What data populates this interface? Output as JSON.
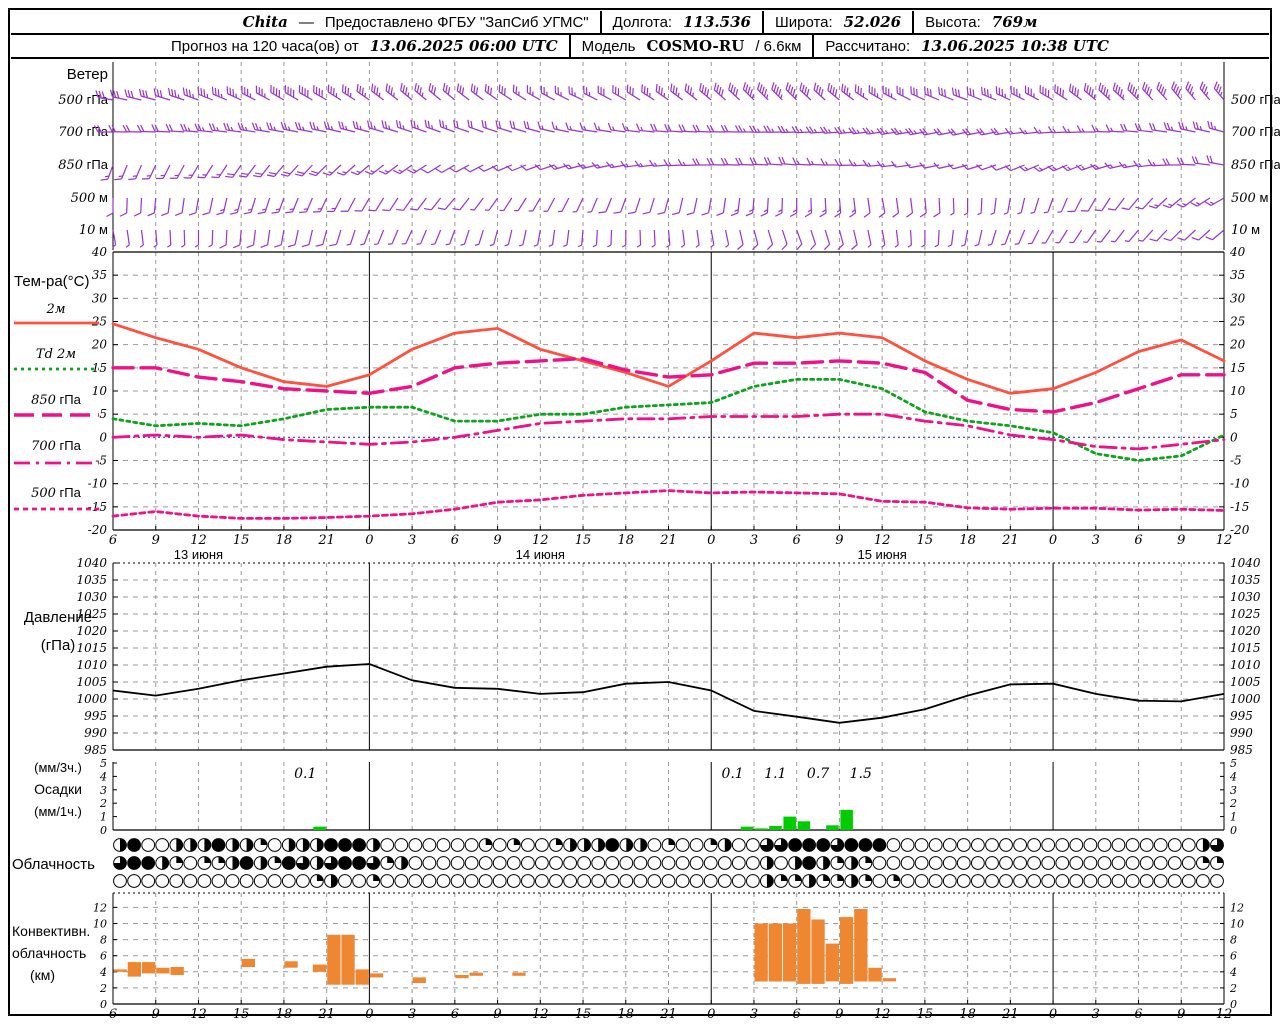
{
  "header": {
    "station": "Chita",
    "dash": "—",
    "provider": "Предоставлено ФГБУ \"ЗапСиб УГМС\"",
    "lon_label": "Долгота:",
    "lon_value": "113.536",
    "lat_label": "Широта:",
    "lat_value": "52.026",
    "alt_label": "Высота:",
    "alt_value": "769м",
    "forecast_label": "Прогноз на 120 часа(ов) от",
    "forecast_time": "13.06.2025 06:00 UTC",
    "model_label": "Модель",
    "model_name": "COSMO-RU",
    "model_res": "/ 6.6км",
    "calc_label": "Рассчитано:",
    "calc_time": "13.06.2025 10:38 UTC"
  },
  "colors": {
    "wind": "#9933cc",
    "t2m": "#ff5040",
    "td2m": "#0da31c",
    "iso": "#ee1188",
    "precip": "#00cc00",
    "convective": "#ef8632",
    "pressure": "#000000",
    "grid": "#999999",
    "zero_line": "#3333ff"
  },
  "chart_data": {
    "time_axis": {
      "start_hour": 6,
      "end_hour": 84,
      "tick_step_h": 3,
      "tick_labels": [
        "6",
        "9",
        "12",
        "15",
        "18",
        "21",
        "0",
        "3",
        "6",
        "9",
        "12",
        "15",
        "18",
        "21",
        "0",
        "3",
        "6",
        "9",
        "12",
        "15",
        "18",
        "21",
        "0",
        "3",
        "6",
        "9",
        "12"
      ],
      "date_labels": [
        {
          "label": "13 июня",
          "hour": 12
        },
        {
          "label": "14 июня",
          "hour": 36
        },
        {
          "label": "15 июня",
          "hour": 60
        }
      ],
      "midnights": [
        24,
        48,
        72
      ]
    },
    "wind": {
      "type": "wind-barbs",
      "title": "Ветер",
      "levels": [
        {
          "label_num": "500",
          "label_unit": "гПа",
          "dirs": [
            280,
            285,
            290,
            295,
            300,
            300,
            305,
            310,
            310,
            305,
            300,
            295,
            300,
            305,
            310,
            315,
            315,
            310,
            300,
            295,
            290,
            295,
            300,
            310,
            315,
            320,
            320
          ],
          "speeds": [
            16,
            16,
            18,
            18,
            20,
            20,
            18,
            18,
            16,
            16,
            14,
            14,
            16,
            18,
            20,
            22,
            22,
            20,
            18,
            16,
            16,
            18,
            20,
            22,
            22,
            20,
            18
          ]
        },
        {
          "label_num": "700",
          "label_unit": "гПа",
          "dirs": [
            270,
            272,
            275,
            278,
            280,
            282,
            285,
            288,
            290,
            288,
            285,
            280,
            278,
            275,
            272,
            270,
            268,
            265,
            262,
            260,
            258,
            260,
            265,
            270,
            275,
            280,
            285
          ],
          "speeds": [
            10,
            10,
            12,
            12,
            12,
            14,
            14,
            12,
            12,
            10,
            10,
            8,
            8,
            10,
            10,
            12,
            12,
            14,
            14,
            12,
            10,
            10,
            8,
            8,
            10,
            12,
            12
          ]
        },
        {
          "label_num": "850",
          "label_unit": "гПа",
          "dirs": [
            200,
            205,
            210,
            215,
            220,
            225,
            230,
            235,
            240,
            245,
            250,
            255,
            260,
            265,
            270,
            272,
            275,
            270,
            265,
            260,
            255,
            250,
            245,
            250,
            260,
            270,
            280
          ],
          "speeds": [
            8,
            8,
            8,
            10,
            10,
            10,
            8,
            8,
            6,
            6,
            6,
            8,
            8,
            8,
            10,
            10,
            10,
            8,
            8,
            6,
            6,
            6,
            8,
            8,
            8,
            10,
            10
          ]
        },
        {
          "label_num": "500",
          "label_unit": "м",
          "dirs": [
            180,
            185,
            190,
            195,
            200,
            205,
            210,
            215,
            220,
            215,
            210,
            205,
            200,
            195,
            190,
            185,
            180,
            175,
            170,
            175,
            180,
            190,
            200,
            210,
            220,
            230,
            240
          ],
          "speeds": [
            6,
            6,
            6,
            8,
            8,
            8,
            6,
            6,
            6,
            4,
            4,
            4,
            6,
            6,
            6,
            8,
            8,
            8,
            6,
            6,
            4,
            4,
            4,
            6,
            6,
            8,
            8
          ]
        },
        {
          "label_num": "10",
          "label_unit": "м",
          "dirs": [
            170,
            175,
            180,
            185,
            190,
            195,
            200,
            205,
            200,
            195,
            190,
            185,
            180,
            175,
            170,
            165,
            160,
            165,
            170,
            180,
            190,
            200,
            210,
            215,
            220,
            225,
            230
          ],
          "speeds": [
            4,
            4,
            4,
            6,
            6,
            6,
            4,
            4,
            4,
            2,
            2,
            2,
            4,
            4,
            4,
            6,
            6,
            6,
            4,
            4,
            2,
            2,
            2,
            4,
            4,
            6,
            6
          ]
        }
      ]
    },
    "temperature": {
      "type": "line",
      "title": "Тем-ра(°C)",
      "ylim": [
        -20,
        40
      ],
      "yticks": [
        40,
        35,
        30,
        25,
        20,
        15,
        10,
        5,
        0,
        -5,
        -10,
        -15,
        -20
      ],
      "x_hours": [
        6,
        9,
        12,
        15,
        18,
        21,
        24,
        27,
        30,
        33,
        36,
        39,
        42,
        45,
        48,
        51,
        54,
        57,
        60,
        63,
        66,
        69,
        72,
        75,
        78,
        81,
        84
      ],
      "series": [
        {
          "name": "2м",
          "style": "solid",
          "color": "#ff5040",
          "values": [
            24.5,
            21.5,
            19,
            15,
            12,
            11,
            13.5,
            19,
            22.5,
            23.5,
            19,
            16.5,
            14,
            11,
            16.5,
            22.5,
            21.5,
            22.5,
            21.5,
            16.5,
            12.5,
            9.5,
            10.5,
            14,
            18.5,
            21,
            16.5
          ]
        },
        {
          "name": "Td 2м",
          "style": "dotted",
          "color": "#0da31c",
          "values": [
            4,
            2.5,
            3,
            2.5,
            4,
            6,
            6.5,
            6.5,
            3.5,
            3.5,
            5,
            5,
            6.5,
            7,
            7.5,
            11,
            12.5,
            12.5,
            10.5,
            5.5,
            3.5,
            2.5,
            1,
            -3.5,
            -5,
            -4,
            0.5
          ]
        },
        {
          "name": "850 гПа",
          "style": "longdash",
          "color": "#ee1188",
          "values": [
            15,
            15,
            13,
            12,
            10.5,
            10,
            9.5,
            11,
            15,
            16,
            16.5,
            17,
            14.5,
            13,
            13.5,
            16,
            16,
            16.5,
            16,
            14,
            8,
            6,
            5.5,
            7.5,
            10.5,
            13.5,
            13.5
          ]
        },
        {
          "name": "700 гПа",
          "style": "dashdot",
          "color": "#ee1188",
          "values": [
            0,
            0.5,
            0,
            0.5,
            -0.5,
            -1,
            -1.5,
            -1,
            0,
            1.5,
            3,
            3.5,
            4,
            4,
            4.5,
            4.5,
            4.5,
            5,
            5,
            3.5,
            2.5,
            0.5,
            -0.5,
            -2,
            -2.5,
            -1.5,
            -0.5
          ]
        },
        {
          "name": "500 гПа",
          "style": "dash",
          "color": "#ee1188",
          "values": [
            -17,
            -16,
            -17,
            -17.5,
            -17.5,
            -17.3,
            -17,
            -16.5,
            -15.5,
            -14,
            -13.5,
            -12.5,
            -12,
            -11.5,
            -12,
            -11.8,
            -12,
            -12.2,
            -13.8,
            -14,
            -15.2,
            -15.5,
            -15.3,
            -15.3,
            -15.7,
            -15.5,
            -15.8
          ]
        }
      ]
    },
    "pressure": {
      "type": "line",
      "labels": [
        "Давление",
        "(гПа)"
      ],
      "ylim": [
        985,
        1040
      ],
      "yticks": [
        1040,
        1035,
        1030,
        1025,
        1020,
        1015,
        1010,
        1005,
        1000,
        995,
        990,
        985
      ],
      "x_hours": [
        6,
        9,
        12,
        15,
        18,
        21,
        24,
        27,
        30,
        33,
        36,
        39,
        42,
        45,
        48,
        51,
        54,
        57,
        60,
        63,
        66,
        69,
        72,
        75,
        78,
        81,
        84
      ],
      "values": [
        1002.5,
        1001,
        1003,
        1005.5,
        1007.5,
        1009.5,
        1010.3,
        1005.5,
        1003.3,
        1003,
        1001.5,
        1002,
        1004.5,
        1005,
        1002.5,
        996.5,
        994.8,
        993,
        994.5,
        997,
        1001,
        1004.3,
        1004.5,
        1001.5,
        999.5,
        999.3,
        1001.5
      ]
    },
    "precipitation": {
      "type": "bar",
      "labels_left": [
        "(мм/3ч.)",
        "Осадки",
        "(мм/1ч.)"
      ],
      "ylim": [
        0,
        5
      ],
      "yticks": [
        5,
        4,
        3,
        2,
        1,
        0
      ],
      "bars": [
        [
          20,
          0.25
        ],
        [
          50,
          0.25
        ],
        [
          51,
          0.12
        ],
        [
          52,
          0.3
        ],
        [
          53,
          1.0
        ],
        [
          54,
          0.65
        ],
        [
          56,
          0.35
        ],
        [
          57,
          1.5
        ]
      ],
      "sums_3h": [
        {
          "hour": 19.5,
          "text": "0.1"
        },
        {
          "hour": 49.5,
          "text": "0.1"
        },
        {
          "hour": 52.5,
          "text": "1.1"
        },
        {
          "hour": 55.5,
          "text": "0.7"
        },
        {
          "hour": 58.5,
          "text": "1.5"
        }
      ]
    },
    "cloudiness": {
      "type": "symbols",
      "title": "Облачность",
      "rows_quarters": [
        [
          2,
          4,
          0,
          0,
          2,
          2,
          2,
          4,
          2,
          2,
          1,
          0,
          2,
          2,
          2,
          4,
          4,
          4,
          2,
          0,
          0,
          0,
          0,
          0,
          0,
          0,
          1,
          0,
          1,
          0,
          0,
          1,
          2,
          2,
          2,
          4,
          2,
          2,
          0,
          1,
          0,
          0,
          1,
          2,
          0,
          0,
          3,
          3,
          4,
          4,
          4,
          3,
          4,
          4,
          4,
          0,
          0,
          0,
          0,
          0,
          0,
          0,
          0,
          0,
          0,
          0,
          0,
          0,
          0,
          0,
          0,
          0,
          0,
          0,
          0,
          0,
          0,
          2,
          3
        ],
        [
          3,
          4,
          4,
          2,
          1,
          0,
          1,
          1,
          2,
          4,
          2,
          1,
          4,
          3,
          2,
          3,
          4,
          4,
          3,
          1,
          2,
          0,
          0,
          0,
          0,
          0,
          0,
          0,
          0,
          0,
          0,
          0,
          0,
          0,
          0,
          0,
          0,
          0,
          0,
          0,
          0,
          0,
          0,
          0,
          0,
          0,
          2,
          0,
          2,
          4,
          2,
          1,
          2,
          1,
          0,
          0,
          0,
          0,
          0,
          0,
          0,
          0,
          0,
          0,
          0,
          0,
          0,
          0,
          0,
          0,
          0,
          0,
          0,
          0,
          0,
          0,
          0,
          1,
          1
        ],
        [
          0,
          0,
          0,
          0,
          0,
          0,
          0,
          0,
          0,
          0,
          0,
          0,
          0,
          0,
          1,
          2,
          0,
          0,
          1,
          0,
          0,
          0,
          0,
          0,
          0,
          0,
          0,
          0,
          0,
          0,
          0,
          0,
          0,
          0,
          0,
          0,
          0,
          0,
          0,
          0,
          0,
          0,
          0,
          0,
          0,
          0,
          2,
          1,
          1,
          2,
          1,
          1,
          2,
          1,
          0,
          1,
          0,
          0,
          0,
          0,
          0,
          0,
          0,
          0,
          0,
          0,
          0,
          0,
          0,
          0,
          0,
          0,
          0,
          0,
          0,
          0,
          0,
          0,
          0
        ]
      ]
    },
    "convective": {
      "type": "bar-range",
      "labels_left": [
        "Конвективн.",
        "облачность",
        "(км)"
      ],
      "ylim": [
        0,
        13
      ],
      "yticks": [
        12,
        10,
        8,
        6,
        4,
        2,
        0
      ],
      "bars": [
        [
          6,
          4.0,
          4.3
        ],
        [
          7,
          3.4,
          5.2
        ],
        [
          8,
          3.8,
          5.2
        ],
        [
          9,
          3.8,
          4.5
        ],
        [
          10,
          3.6,
          4.6
        ],
        [
          15,
          4.6,
          5.6
        ],
        [
          18,
          4.5,
          5.3
        ],
        [
          20,
          4.0,
          4.9
        ],
        [
          21,
          2.4,
          8.6
        ],
        [
          22,
          2.4,
          8.6
        ],
        [
          23,
          2.4,
          4.3
        ],
        [
          24,
          3.3,
          3.8
        ],
        [
          27,
          2.6,
          3.3
        ],
        [
          30,
          3.2,
          3.6
        ],
        [
          31,
          3.5,
          3.9
        ],
        [
          34,
          3.5,
          3.9
        ],
        [
          51,
          2.8,
          10
        ],
        [
          52,
          2.8,
          10
        ],
        [
          53,
          2.8,
          10
        ],
        [
          54,
          2.5,
          11.8
        ],
        [
          55,
          2.5,
          10.5
        ],
        [
          56,
          2.8,
          7.5
        ],
        [
          57,
          2.5,
          10.8
        ],
        [
          58,
          2.8,
          11.8
        ],
        [
          59,
          2.8,
          4.5
        ],
        [
          60,
          2.8,
          3.2
        ]
      ]
    }
  }
}
